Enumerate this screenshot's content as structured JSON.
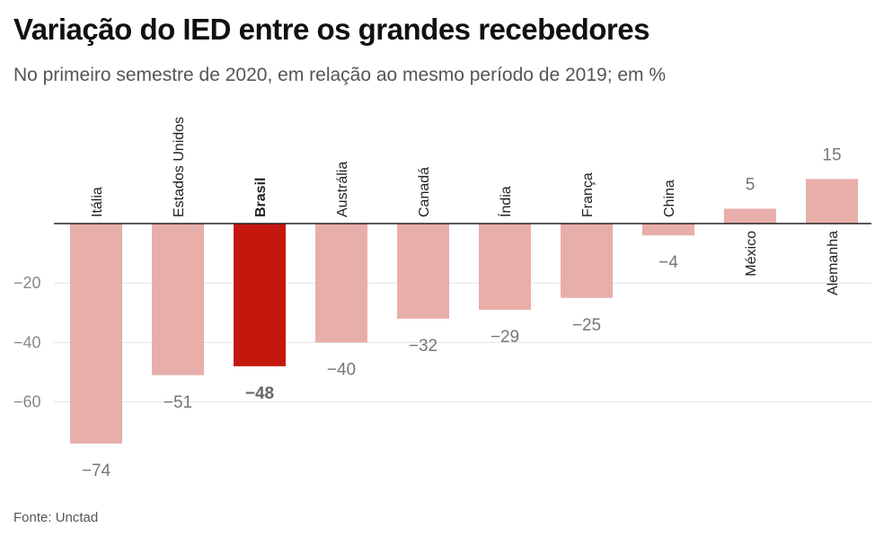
{
  "chart_data": {
    "type": "bar",
    "title": "Variação do IED entre os grandes recebedores",
    "subtitle": "No primeiro semestre de 2020, em relação ao mesmo período de 2019; em %",
    "categories": [
      "Itália",
      "Estados Unidos",
      "Brasil",
      "Austrália",
      "Canadá",
      "Índia",
      "França",
      "China",
      "México",
      "Alemanha"
    ],
    "values": [
      -74,
      -51,
      -48,
      -40,
      -32,
      -29,
      -25,
      -4,
      5,
      15
    ],
    "value_labels": [
      "−74",
      "−51",
      "−48",
      "−40",
      "−32",
      "−29",
      "−25",
      "−4",
      "5",
      "15"
    ],
    "highlight": "Brasil",
    "yticks": [
      -20,
      -40,
      -60
    ],
    "ytick_labels": [
      "−20",
      "−40",
      "−60"
    ],
    "ylim": [
      -80,
      20
    ],
    "grid": true,
    "colors": {
      "bar": "#e8aeaa",
      "highlight": "#c4180e",
      "axis": "#222222",
      "grid": "#e3e3e3"
    }
  },
  "source": "Fonte: Unctad"
}
